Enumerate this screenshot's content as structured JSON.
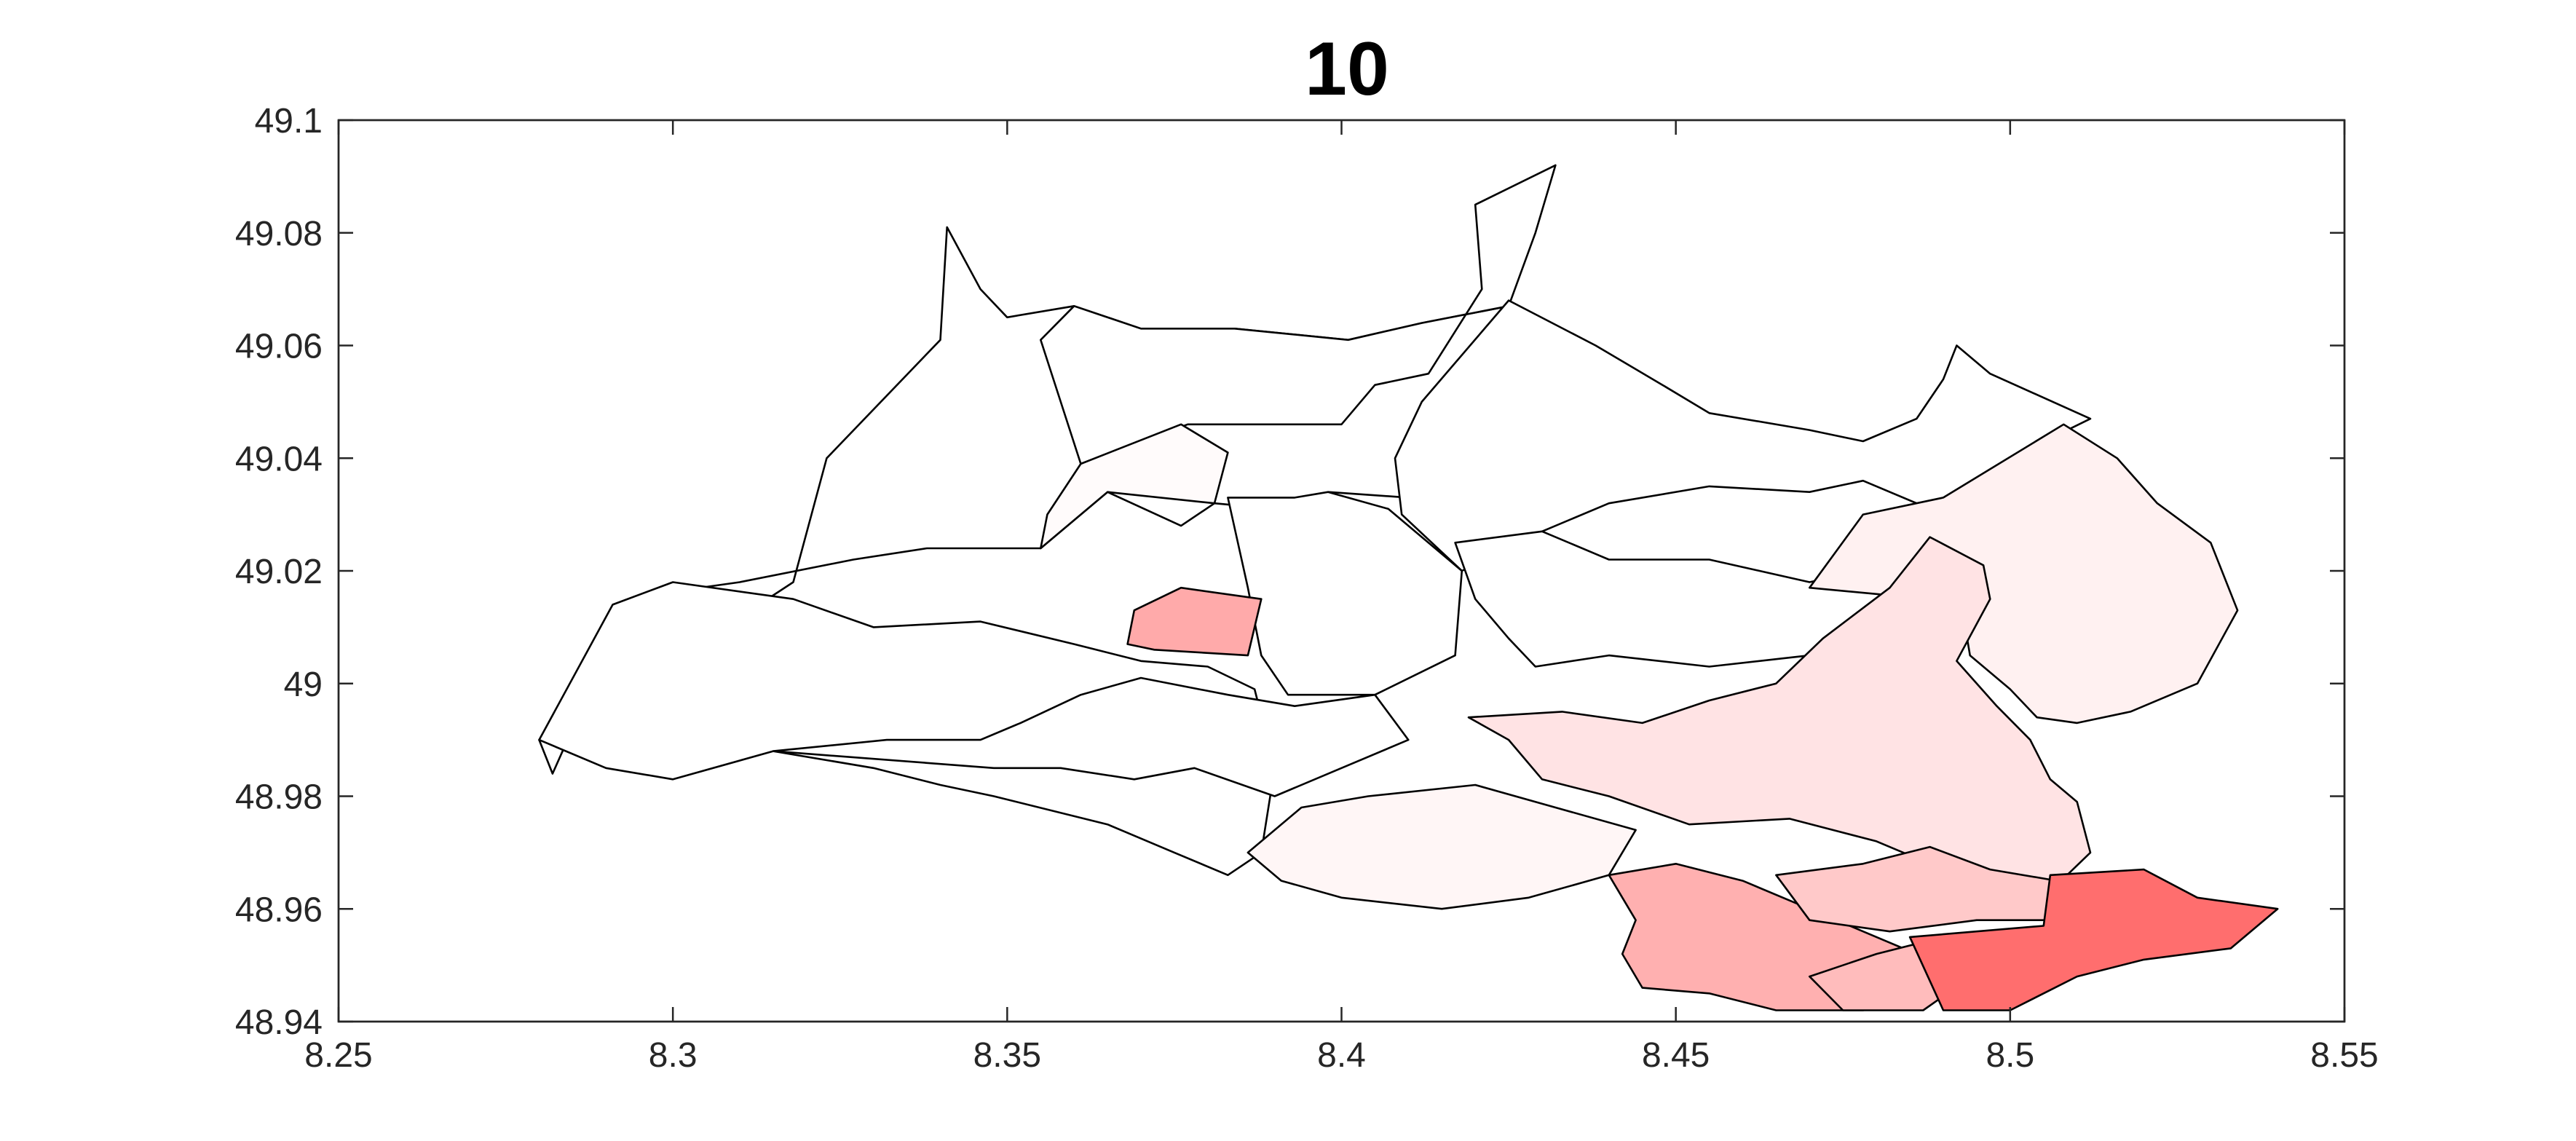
{
  "chart_data": {
    "type": "map",
    "title": "10",
    "xlim": [
      8.25,
      8.55
    ],
    "ylim": [
      48.94,
      49.1
    ],
    "x_ticks": [
      8.25,
      8.3,
      8.35,
      8.4,
      8.45,
      8.5,
      8.55
    ],
    "x_tick_labels": [
      "8.25",
      "8.3",
      "8.35",
      "8.4",
      "8.45",
      "8.5",
      "8.55"
    ],
    "y_ticks": [
      48.94,
      48.96,
      48.98,
      49.0,
      49.02,
      49.04,
      49.06,
      49.08,
      49.1
    ],
    "y_tick_labels": [
      "48.94",
      "48.96",
      "48.98",
      "49",
      "49.02",
      "49.04",
      "49.06",
      "49.08",
      "49.1"
    ],
    "grid": false,
    "colormap": "white-to-red",
    "regions": [
      {
        "shade": 0.0,
        "fill": "#ffffff",
        "coords": [
          [
            8.28,
            48.99
          ],
          [
            8.3,
            49.004
          ],
          [
            8.318,
            49.018
          ],
          [
            8.323,
            49.04
          ],
          [
            8.34,
            49.061
          ],
          [
            8.341,
            49.081
          ],
          [
            8.346,
            49.07
          ],
          [
            8.35,
            49.065
          ],
          [
            8.36,
            49.067
          ],
          [
            8.37,
            49.063
          ],
          [
            8.384,
            49.063
          ],
          [
            8.401,
            49.061
          ],
          [
            8.412,
            49.064
          ],
          [
            8.425,
            49.067
          ],
          [
            8.43,
            49.062
          ],
          [
            8.437,
            49.05
          ],
          [
            8.43,
            49.04
          ],
          [
            8.42,
            49.035
          ],
          [
            8.41,
            49.033
          ],
          [
            8.398,
            49.034
          ],
          [
            8.39,
            49.031
          ],
          [
            8.381,
            49.032
          ],
          [
            8.376,
            49.028
          ],
          [
            8.365,
            49.034
          ],
          [
            8.355,
            49.024
          ],
          [
            8.338,
            49.024
          ],
          [
            8.327,
            49.022
          ],
          [
            8.31,
            49.018
          ],
          [
            8.298,
            49.016
          ],
          [
            8.3,
            49.008
          ],
          [
            8.292,
            49.003
          ],
          [
            8.285,
            48.992
          ],
          [
            8.282,
            48.984
          ]
        ]
      },
      {
        "shade": 0.0,
        "fill": "#ffffff",
        "coords": [
          [
            8.361,
            49.039
          ],
          [
            8.377,
            49.046
          ],
          [
            8.388,
            49.046
          ],
          [
            8.4,
            49.046
          ],
          [
            8.405,
            49.053
          ],
          [
            8.413,
            49.055
          ],
          [
            8.421,
            49.07
          ],
          [
            8.42,
            49.085
          ],
          [
            8.432,
            49.092
          ],
          [
            8.429,
            49.08
          ],
          [
            8.425,
            49.067
          ],
          [
            8.412,
            49.064
          ],
          [
            8.401,
            49.061
          ],
          [
            8.384,
            49.063
          ],
          [
            8.37,
            49.063
          ],
          [
            8.36,
            49.067
          ],
          [
            8.355,
            49.061
          ]
        ]
      },
      {
        "shade": 0.0,
        "fill": "#ffffff",
        "coords": [
          [
            8.425,
            49.068
          ],
          [
            8.438,
            49.06
          ],
          [
            8.448,
            49.053
          ],
          [
            8.455,
            49.048
          ],
          [
            8.47,
            49.045
          ],
          [
            8.478,
            49.043
          ],
          [
            8.486,
            49.047
          ],
          [
            8.49,
            49.054
          ],
          [
            8.492,
            49.06
          ],
          [
            8.497,
            49.055
          ],
          [
            8.512,
            49.047
          ],
          [
            8.5,
            49.04
          ],
          [
            8.49,
            49.03
          ],
          [
            8.478,
            49.036
          ],
          [
            8.47,
            49.034
          ],
          [
            8.455,
            49.035
          ],
          [
            8.44,
            49.032
          ],
          [
            8.43,
            49.027
          ],
          [
            8.418,
            49.02
          ],
          [
            8.409,
            49.03
          ],
          [
            8.408,
            49.04
          ],
          [
            8.412,
            49.05
          ]
        ]
      },
      {
        "shade": 0.0,
        "fill": "#ffffff",
        "coords": [
          [
            8.28,
            48.99
          ],
          [
            8.29,
            48.985
          ],
          [
            8.3,
            48.983
          ],
          [
            8.315,
            48.988
          ],
          [
            8.33,
            48.985
          ],
          [
            8.34,
            48.982
          ],
          [
            8.348,
            48.98
          ],
          [
            8.365,
            48.975
          ],
          [
            8.375,
            48.97
          ],
          [
            8.383,
            48.966
          ],
          [
            8.388,
            48.97
          ],
          [
            8.39,
            48.985
          ],
          [
            8.387,
            48.999
          ],
          [
            8.38,
            49.003
          ],
          [
            8.37,
            49.004
          ],
          [
            8.36,
            49.007
          ],
          [
            8.346,
            49.011
          ],
          [
            8.33,
            49.01
          ],
          [
            8.318,
            49.015
          ],
          [
            8.3,
            49.018
          ],
          [
            8.291,
            49.014
          ]
        ]
      },
      {
        "shade": 0.02,
        "fill": "#fffbfb",
        "coords": [
          [
            8.355,
            49.024
          ],
          [
            8.365,
            49.034
          ],
          [
            8.381,
            49.032
          ],
          [
            8.383,
            49.041
          ],
          [
            8.376,
            49.046
          ],
          [
            8.361,
            49.039
          ],
          [
            8.356,
            49.03
          ]
        ]
      },
      {
        "shade": 0.0,
        "fill": "#ffffff",
        "coords": [
          [
            8.383,
            49.033
          ],
          [
            8.393,
            49.033
          ],
          [
            8.398,
            49.034
          ],
          [
            8.407,
            49.031
          ],
          [
            8.418,
            49.02
          ],
          [
            8.417,
            49.005
          ],
          [
            8.405,
            48.998
          ],
          [
            8.392,
            48.998
          ],
          [
            8.388,
            49.005
          ],
          [
            8.386,
            49.017
          ]
        ]
      },
      {
        "shade": 0.0,
        "fill": "#ffffff",
        "coords": [
          [
            8.417,
            49.025
          ],
          [
            8.43,
            49.027
          ],
          [
            8.44,
            49.022
          ],
          [
            8.455,
            49.022
          ],
          [
            8.47,
            49.018
          ],
          [
            8.478,
            49.02
          ],
          [
            8.485,
            49.018
          ],
          [
            8.482,
            49.01
          ],
          [
            8.47,
            49.005
          ],
          [
            8.455,
            49.003
          ],
          [
            8.44,
            49.005
          ],
          [
            8.429,
            49.003
          ],
          [
            8.425,
            49.008
          ],
          [
            8.42,
            49.015
          ]
        ]
      },
      {
        "shade": 0.1,
        "fill": "#fff1f1",
        "coords": [
          [
            8.47,
            49.017
          ],
          [
            8.478,
            49.03
          ],
          [
            8.49,
            49.033
          ],
          [
            8.508,
            49.046
          ],
          [
            8.516,
            49.04
          ],
          [
            8.522,
            49.032
          ],
          [
            8.53,
            49.025
          ],
          [
            8.534,
            49.013
          ],
          [
            8.528,
            49.0
          ],
          [
            8.518,
            48.995
          ],
          [
            8.51,
            48.993
          ],
          [
            8.504,
            48.994
          ],
          [
            8.5,
            48.999
          ],
          [
            8.494,
            49.005
          ],
          [
            8.493,
            49.012
          ],
          [
            8.488,
            49.015
          ]
        ]
      },
      {
        "shade": 0.15,
        "fill": "#ffe3e4",
        "coords": [
          [
            8.419,
            48.994
          ],
          [
            8.433,
            48.995
          ],
          [
            8.445,
            48.993
          ],
          [
            8.455,
            48.997
          ],
          [
            8.465,
            49.0
          ],
          [
            8.472,
            49.008
          ],
          [
            8.482,
            49.017
          ],
          [
            8.488,
            49.026
          ],
          [
            8.496,
            49.021
          ],
          [
            8.497,
            49.015
          ],
          [
            8.492,
            49.004
          ],
          [
            8.498,
            48.996
          ],
          [
            8.503,
            48.99
          ],
          [
            8.506,
            48.983
          ],
          [
            8.51,
            48.979
          ],
          [
            8.512,
            48.97
          ],
          [
            8.505,
            48.962
          ],
          [
            8.498,
            48.962
          ],
          [
            8.488,
            48.968
          ],
          [
            8.48,
            48.972
          ],
          [
            8.467,
            48.976
          ],
          [
            8.452,
            48.975
          ],
          [
            8.44,
            48.98
          ],
          [
            8.43,
            48.983
          ],
          [
            8.425,
            48.99
          ]
        ]
      },
      {
        "shade": 0.05,
        "fill": "#fff6f6",
        "coords": [
          [
            8.404,
            48.98
          ],
          [
            8.42,
            48.982
          ],
          [
            8.432,
            48.978
          ],
          [
            8.444,
            48.974
          ],
          [
            8.44,
            48.966
          ],
          [
            8.428,
            48.962
          ],
          [
            8.415,
            48.96
          ],
          [
            8.4,
            48.962
          ],
          [
            8.391,
            48.965
          ],
          [
            8.386,
            48.97
          ],
          [
            8.394,
            48.978
          ]
        ]
      },
      {
        "shade": 0.35,
        "fill": "#ffaaaa",
        "coords": [
          [
            8.368,
            49.007
          ],
          [
            8.372,
            49.006
          ],
          [
            8.386,
            49.005
          ],
          [
            8.388,
            49.015
          ],
          [
            8.376,
            49.017
          ],
          [
            8.369,
            49.013
          ]
        ]
      },
      {
        "shade": 0.3,
        "fill": "#ffb0b0",
        "coords": [
          [
            8.44,
            48.966
          ],
          [
            8.45,
            48.968
          ],
          [
            8.46,
            48.965
          ],
          [
            8.47,
            48.96
          ],
          [
            8.48,
            48.955
          ],
          [
            8.49,
            48.95
          ],
          [
            8.488,
            48.945
          ],
          [
            8.478,
            48.942
          ],
          [
            8.465,
            48.942
          ],
          [
            8.455,
            48.945
          ],
          [
            8.445,
            48.946
          ],
          [
            8.442,
            48.952
          ],
          [
            8.444,
            48.958
          ]
        ]
      },
      {
        "shade": 0.2,
        "fill": "#ffc9c9",
        "coords": [
          [
            8.465,
            48.966
          ],
          [
            8.478,
            48.968
          ],
          [
            8.488,
            48.971
          ],
          [
            8.497,
            48.967
          ],
          [
            8.507,
            48.965
          ],
          [
            8.506,
            48.958
          ],
          [
            8.495,
            48.958
          ],
          [
            8.482,
            48.956
          ],
          [
            8.47,
            48.958
          ]
        ]
      },
      {
        "shade": 0.25,
        "fill": "#ffbcbc",
        "coords": [
          [
            8.47,
            48.948
          ],
          [
            8.48,
            48.952
          ],
          [
            8.49,
            48.955
          ],
          [
            8.493,
            48.947
          ],
          [
            8.487,
            48.942
          ],
          [
            8.475,
            48.942
          ]
        ]
      },
      {
        "shade": 0.55,
        "fill": "#ff6e6e",
        "coords": [
          [
            8.485,
            48.955
          ],
          [
            8.505,
            48.957
          ],
          [
            8.506,
            48.966
          ],
          [
            8.52,
            48.967
          ],
          [
            8.528,
            48.962
          ],
          [
            8.54,
            48.96
          ],
          [
            8.533,
            48.953
          ],
          [
            8.52,
            48.951
          ],
          [
            8.51,
            48.948
          ],
          [
            8.5,
            48.942
          ],
          [
            8.49,
            48.942
          ]
        ]
      },
      {
        "shade": 0.0,
        "fill": "#ffffff",
        "coords": [
          [
            8.315,
            48.988
          ],
          [
            8.332,
            48.99
          ],
          [
            8.346,
            48.99
          ],
          [
            8.352,
            48.993
          ],
          [
            8.361,
            48.998
          ],
          [
            8.37,
            49.001
          ],
          [
            8.383,
            48.998
          ],
          [
            8.393,
            48.996
          ],
          [
            8.405,
            48.998
          ],
          [
            8.41,
            48.99
          ],
          [
            8.4,
            48.985
          ],
          [
            8.39,
            48.98
          ],
          [
            8.378,
            48.985
          ],
          [
            8.369,
            48.983
          ],
          [
            8.358,
            48.985
          ],
          [
            8.348,
            48.985
          ]
        ]
      }
    ]
  }
}
